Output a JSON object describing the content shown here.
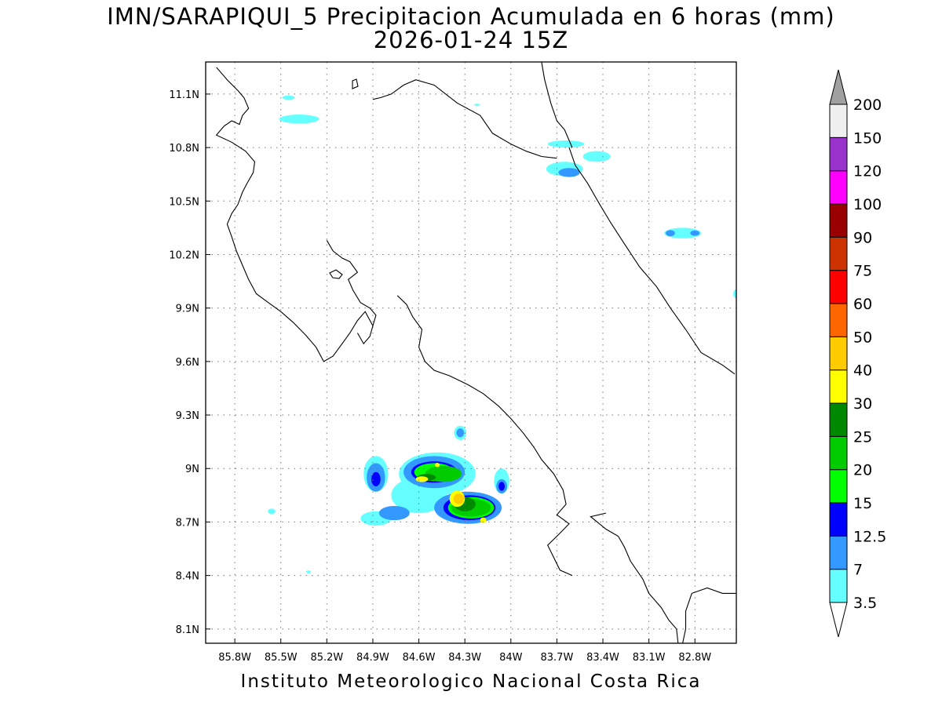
{
  "title": {
    "line1": "IMN/SARAPIQUI_5 Precipitacion Acumulada en 6 horas (mm)",
    "line2": "2026-01-24 15Z"
  },
  "footer": "Instituto Meteorologico Nacional Costa Rica",
  "axes": {
    "lon_ticks": [
      {
        "value": -85.8,
        "label": "85.8W"
      },
      {
        "value": -85.5,
        "label": "85.5W"
      },
      {
        "value": -85.2,
        "label": "85.2W"
      },
      {
        "value": -84.9,
        "label": "84.9W"
      },
      {
        "value": -84.6,
        "label": "84.6W"
      },
      {
        "value": -84.3,
        "label": "84.3W"
      },
      {
        "value": -84.0,
        "label": "84W"
      },
      {
        "value": -83.7,
        "label": "83.7W"
      },
      {
        "value": -83.4,
        "label": "83.4W"
      },
      {
        "value": -83.1,
        "label": "83.1W"
      },
      {
        "value": -82.8,
        "label": "82.8W"
      }
    ],
    "lat_ticks": [
      {
        "value": 8.1,
        "label": "8.1N"
      },
      {
        "value": 8.4,
        "label": "8.4N"
      },
      {
        "value": 8.7,
        "label": "8.7N"
      },
      {
        "value": 9.0,
        "label": "9N"
      },
      {
        "value": 9.3,
        "label": "9.3N"
      },
      {
        "value": 9.6,
        "label": "9.6N"
      },
      {
        "value": 9.9,
        "label": "9.9N"
      },
      {
        "value": 10.2,
        "label": "10.2N"
      },
      {
        "value": 10.5,
        "label": "10.5N"
      },
      {
        "value": 10.8,
        "label": "10.8N"
      },
      {
        "value": 11.1,
        "label": "11.1N"
      }
    ],
    "lon_range": [
      -85.99,
      -82.53
    ],
    "lat_range": [
      8.02,
      11.28
    ],
    "grid": "dotted"
  },
  "colorbar": {
    "levels": [
      {
        "label": "3.5",
        "color": "#66ffff"
      },
      {
        "label": "7",
        "color": "#3399ff"
      },
      {
        "label": "12.5",
        "color": "#0000ff"
      },
      {
        "label": "15",
        "color": "#00ff00"
      },
      {
        "label": "20",
        "color": "#00cc00"
      },
      {
        "label": "25",
        "color": "#008800"
      },
      {
        "label": "30",
        "color": "#ffff00"
      },
      {
        "label": "40",
        "color": "#ffcc00"
      },
      {
        "label": "50",
        "color": "#ff6600"
      },
      {
        "label": "60",
        "color": "#ff0000"
      },
      {
        "label": "75",
        "color": "#cc3300"
      },
      {
        "label": "90",
        "color": "#990000"
      },
      {
        "label": "100",
        "color": "#990000"
      },
      {
        "label": "120",
        "color": "#ff00ff"
      },
      {
        "label": "150",
        "color": "#9933cc"
      },
      {
        "label": "200",
        "color": "#f0f0f0"
      }
    ],
    "bin_colors": [
      "#66ffff",
      "#3399ff",
      "#0000ff",
      "#00ff00",
      "#00cc00",
      "#008800",
      "#ffff00",
      "#ffcc00",
      "#ff6600",
      "#ff0000",
      "#cc3300",
      "#990000",
      "#ff00ff",
      "#9933cc",
      "#f0f0f0"
    ],
    "top_arrow_color": "#a0a0a0",
    "bottom_arrow_color": "#ffffff"
  },
  "precip_blobs": [
    {
      "lon": -85.38,
      "lat": 10.96,
      "rx": 0.13,
      "ry": 0.025,
      "color": "#66ffff"
    },
    {
      "lon": -85.45,
      "lat": 11.08,
      "rx": 0.04,
      "ry": 0.012,
      "color": "#66ffff"
    },
    {
      "lon": -84.22,
      "lat": 11.04,
      "rx": 0.02,
      "ry": 0.006,
      "color": "#66ffff"
    },
    {
      "lon": -83.65,
      "lat": 10.68,
      "rx": 0.12,
      "ry": 0.04,
      "color": "#66ffff"
    },
    {
      "lon": -83.44,
      "lat": 10.75,
      "rx": 0.09,
      "ry": 0.03,
      "color": "#66ffff"
    },
    {
      "lon": -83.64,
      "lat": 10.82,
      "rx": 0.12,
      "ry": 0.02,
      "color": "#66ffff"
    },
    {
      "lon": -83.62,
      "lat": 10.66,
      "rx": 0.07,
      "ry": 0.025,
      "color": "#3399ff"
    },
    {
      "lon": -82.88,
      "lat": 10.32,
      "rx": 0.12,
      "ry": 0.03,
      "color": "#66ffff"
    },
    {
      "lon": -82.96,
      "lat": 10.32,
      "rx": 0.03,
      "ry": 0.017,
      "color": "#3399ff"
    },
    {
      "lon": -82.8,
      "lat": 10.32,
      "rx": 0.03,
      "ry": 0.015,
      "color": "#3399ff"
    },
    {
      "lon": -82.53,
      "lat": 9.98,
      "rx": 0.02,
      "ry": 0.025,
      "color": "#66ffff"
    },
    {
      "lon": -85.56,
      "lat": 8.76,
      "rx": 0.025,
      "ry": 0.015,
      "color": "#66ffff"
    },
    {
      "lon": -85.32,
      "lat": 8.42,
      "rx": 0.015,
      "ry": 0.008,
      "color": "#66ffff"
    },
    {
      "lon": -84.88,
      "lat": 8.72,
      "rx": 0.1,
      "ry": 0.04,
      "color": "#66ffff"
    },
    {
      "lon": -84.6,
      "lat": 8.85,
      "rx": 0.18,
      "ry": 0.1,
      "color": "#66ffff"
    },
    {
      "lon": -84.48,
      "lat": 8.97,
      "rx": 0.25,
      "ry": 0.12,
      "color": "#66ffff"
    },
    {
      "lon": -84.88,
      "lat": 8.97,
      "rx": 0.08,
      "ry": 0.1,
      "color": "#66ffff"
    },
    {
      "lon": -84.06,
      "lat": 8.93,
      "rx": 0.05,
      "ry": 0.07,
      "color": "#66ffff"
    },
    {
      "lon": -84.33,
      "lat": 9.2,
      "rx": 0.04,
      "ry": 0.04,
      "color": "#66ffff"
    },
    {
      "lon": -84.76,
      "lat": 8.75,
      "rx": 0.1,
      "ry": 0.04,
      "color": "#3399ff"
    },
    {
      "lon": -84.28,
      "lat": 8.78,
      "rx": 0.22,
      "ry": 0.09,
      "color": "#3399ff"
    },
    {
      "lon": -84.5,
      "lat": 8.98,
      "rx": 0.2,
      "ry": 0.09,
      "color": "#3399ff"
    },
    {
      "lon": -84.88,
      "lat": 8.95,
      "rx": 0.06,
      "ry": 0.08,
      "color": "#3399ff"
    },
    {
      "lon": -84.06,
      "lat": 8.9,
      "rx": 0.035,
      "ry": 0.04,
      "color": "#3399ff"
    },
    {
      "lon": -84.33,
      "lat": 9.2,
      "rx": 0.025,
      "ry": 0.025,
      "color": "#3399ff"
    },
    {
      "lon": -84.88,
      "lat": 8.94,
      "rx": 0.03,
      "ry": 0.04,
      "color": "#0000ff"
    },
    {
      "lon": -84.06,
      "lat": 8.9,
      "rx": 0.02,
      "ry": 0.025,
      "color": "#0000ff"
    },
    {
      "lon": -84.5,
      "lat": 8.98,
      "rx": 0.15,
      "ry": 0.06,
      "color": "#0000ff"
    },
    {
      "lon": -84.27,
      "lat": 8.78,
      "rx": 0.17,
      "ry": 0.07,
      "color": "#0000ff"
    },
    {
      "lon": -84.5,
      "lat": 8.98,
      "rx": 0.13,
      "ry": 0.05,
      "color": "#00ff00"
    },
    {
      "lon": -84.26,
      "lat": 8.78,
      "rx": 0.15,
      "ry": 0.06,
      "color": "#00ff00"
    },
    {
      "lon": -84.44,
      "lat": 8.97,
      "rx": 0.12,
      "ry": 0.045,
      "color": "#00cc00"
    },
    {
      "lon": -84.26,
      "lat": 8.78,
      "rx": 0.13,
      "ry": 0.05,
      "color": "#00cc00"
    },
    {
      "lon": -84.3,
      "lat": 8.8,
      "rx": 0.07,
      "ry": 0.04,
      "color": "#008800"
    },
    {
      "lon": -84.55,
      "lat": 8.95,
      "rx": 0.06,
      "ry": 0.02,
      "color": "#008800"
    },
    {
      "lon": -84.58,
      "lat": 8.94,
      "rx": 0.04,
      "ry": 0.016,
      "color": "#ffff00"
    },
    {
      "lon": -84.35,
      "lat": 8.83,
      "rx": 0.05,
      "ry": 0.045,
      "color": "#ffff00"
    },
    {
      "lon": -84.34,
      "lat": 8.83,
      "rx": 0.035,
      "ry": 0.03,
      "color": "#ffcc00"
    },
    {
      "lon": -84.48,
      "lat": 9.02,
      "rx": 0.015,
      "ry": 0.012,
      "color": "#ffff00"
    },
    {
      "lon": -84.18,
      "lat": 8.71,
      "rx": 0.02,
      "ry": 0.015,
      "color": "#ffff00"
    }
  ],
  "coastlines": [
    [
      [
        -85.92,
        11.25
      ],
      [
        -85.85,
        11.18
      ],
      [
        -85.78,
        11.12
      ],
      [
        -85.74,
        11.08
      ],
      [
        -85.71,
        11.02
      ],
      [
        -85.75,
        10.98
      ],
      [
        -85.77,
        10.93
      ],
      [
        -85.82,
        10.95
      ],
      [
        -85.87,
        10.92
      ],
      [
        -85.92,
        10.87
      ],
      [
        -85.82,
        10.83
      ],
      [
        -85.73,
        10.78
      ],
      [
        -85.67,
        10.72
      ],
      [
        -85.68,
        10.66
      ],
      [
        -85.72,
        10.6
      ],
      [
        -85.75,
        10.55
      ],
      [
        -85.78,
        10.48
      ],
      [
        -85.82,
        10.43
      ],
      [
        -85.85,
        10.37
      ],
      [
        -85.82,
        10.3
      ],
      [
        -85.79,
        10.22
      ],
      [
        -85.75,
        10.14
      ],
      [
        -85.71,
        10.06
      ],
      [
        -85.66,
        9.98
      ],
      [
        -85.58,
        9.93
      ],
      [
        -85.5,
        9.88
      ],
      [
        -85.42,
        9.82
      ],
      [
        -85.34,
        9.75
      ],
      [
        -85.27,
        9.68
      ],
      [
        -85.22,
        9.6
      ],
      [
        -85.16,
        9.63
      ],
      [
        -85.1,
        9.7
      ],
      [
        -85.05,
        9.76
      ],
      [
        -85.0,
        9.83
      ],
      [
        -84.95,
        9.88
      ],
      [
        -84.9,
        9.8
      ],
      [
        -84.92,
        9.74
      ],
      [
        -84.96,
        9.7
      ],
      [
        -85.0,
        9.76
      ]
    ],
    [
      [
        -84.9,
        9.8
      ],
      [
        -84.88,
        9.86
      ],
      [
        -84.92,
        9.9
      ],
      [
        -84.98,
        9.93
      ],
      [
        -85.03,
        10.0
      ],
      [
        -85.06,
        10.06
      ],
      [
        -85.0,
        10.1
      ],
      [
        -85.05,
        10.16
      ],
      [
        -85.1,
        10.18
      ],
      [
        -85.16,
        10.22
      ],
      [
        -85.2,
        10.28
      ]
    ],
    [
      [
        -84.74,
        9.97
      ],
      [
        -84.68,
        9.92
      ],
      [
        -84.64,
        9.85
      ],
      [
        -84.58,
        9.78
      ],
      [
        -84.6,
        9.68
      ],
      [
        -84.56,
        9.6
      ],
      [
        -84.5,
        9.55
      ],
      [
        -84.4,
        9.52
      ],
      [
        -84.28,
        9.47
      ],
      [
        -84.18,
        9.42
      ],
      [
        -84.08,
        9.35
      ],
      [
        -84.0,
        9.28
      ],
      [
        -83.92,
        9.2
      ],
      [
        -83.85,
        9.12
      ],
      [
        -83.8,
        9.05
      ],
      [
        -83.72,
        8.97
      ],
      [
        -83.66,
        8.88
      ],
      [
        -83.64,
        8.8
      ],
      [
        -83.7,
        8.74
      ],
      [
        -83.62,
        8.69
      ],
      [
        -83.7,
        8.62
      ],
      [
        -83.76,
        8.57
      ],
      [
        -83.72,
        8.5
      ],
      [
        -83.68,
        8.43
      ],
      [
        -83.6,
        8.4
      ]
    ],
    [
      [
        -83.38,
        8.75
      ],
      [
        -83.48,
        8.73
      ],
      [
        -83.38,
        8.66
      ],
      [
        -83.3,
        8.62
      ],
      [
        -83.26,
        8.56
      ],
      [
        -83.22,
        8.48
      ],
      [
        -83.14,
        8.38
      ],
      [
        -83.1,
        8.3
      ],
      [
        -83.02,
        8.22
      ],
      [
        -82.97,
        8.15
      ],
      [
        -82.92,
        8.1
      ],
      [
        -82.91,
        8.02
      ]
    ],
    [
      [
        -82.88,
        8.02
      ],
      [
        -82.86,
        8.1
      ],
      [
        -82.86,
        8.2
      ],
      [
        -82.82,
        8.3
      ],
      [
        -82.72,
        8.33
      ],
      [
        -82.62,
        8.3
      ],
      [
        -82.53,
        8.3
      ]
    ],
    [
      [
        -84.9,
        11.07
      ],
      [
        -84.85,
        11.08
      ],
      [
        -84.78,
        11.1
      ],
      [
        -84.7,
        11.15
      ],
      [
        -84.62,
        11.18
      ],
      [
        -84.5,
        11.15
      ],
      [
        -84.35,
        11.05
      ],
      [
        -84.2,
        10.98
      ],
      [
        -84.12,
        10.88
      ],
      [
        -84.0,
        10.82
      ],
      [
        -83.9,
        10.78
      ],
      [
        -83.8,
        10.75
      ],
      [
        -83.7,
        10.74
      ]
    ],
    [
      [
        -83.8,
        11.28
      ],
      [
        -83.78,
        11.18
      ],
      [
        -83.74,
        11.05
      ],
      [
        -83.7,
        10.95
      ],
      [
        -83.65,
        10.9
      ],
      [
        -83.62,
        10.84
      ],
      [
        -83.6,
        10.8
      ]
    ],
    [
      [
        -83.62,
        10.8
      ],
      [
        -83.58,
        10.7
      ],
      [
        -83.5,
        10.6
      ],
      [
        -83.42,
        10.48
      ],
      [
        -83.35,
        10.38
      ],
      [
        -83.26,
        10.26
      ],
      [
        -83.16,
        10.13
      ],
      [
        -83.05,
        10.02
      ],
      [
        -82.96,
        9.9
      ],
      [
        -82.86,
        9.78
      ],
      [
        -82.76,
        9.65
      ],
      [
        -82.62,
        9.58
      ],
      [
        -82.54,
        9.53
      ]
    ]
  ]
}
